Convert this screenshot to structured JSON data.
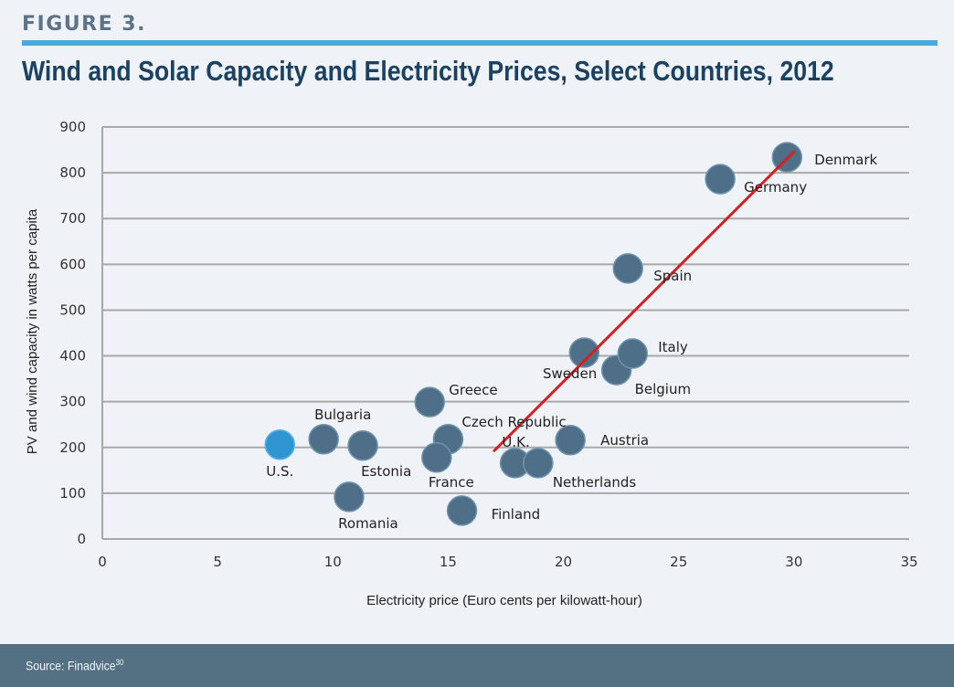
{
  "header": {
    "figure_label": "FIGURE 3.",
    "title": "Wind and Solar Capacity and Electricity Prices, Select Countries, 2012"
  },
  "footer": {
    "source_text": "Source: Finadvice",
    "source_ref": "30"
  },
  "colors": {
    "point": "#4e6f87",
    "highlight_point": "#2f95d1",
    "trendline": "#d42020",
    "gridline": "#a8a8a8",
    "accent_rule": "#4aa8dc",
    "title": "#1b4262",
    "footer_bg": "#537183"
  },
  "chart_data": {
    "type": "scatter",
    "title": "Wind and Solar Capacity and Electricity Prices, Select Countries, 2012",
    "xlabel": "Electricity price (Euro cents per kilowatt-hour)",
    "ylabel": "PV and wind capacity in watts per capita",
    "xlim": [
      0,
      35
    ],
    "ylim": [
      0,
      900
    ],
    "xticks": [
      0,
      5,
      10,
      15,
      20,
      25,
      30,
      35
    ],
    "yticks": [
      0,
      100,
      200,
      300,
      400,
      500,
      600,
      700,
      800,
      900
    ],
    "grid": "horizontal",
    "legend": "none",
    "points": [
      {
        "label": "U.S.",
        "x": 7.7,
        "y": 206,
        "highlight": true,
        "label_pos": "below"
      },
      {
        "label": "Bulgaria",
        "x": 9.6,
        "y": 218,
        "label_pos": "above"
      },
      {
        "label": "Estonia",
        "x": 11.3,
        "y": 204,
        "label_pos": "below-right"
      },
      {
        "label": "Romania",
        "x": 10.7,
        "y": 92,
        "label_pos": "below"
      },
      {
        "label": "Greece",
        "x": 14.2,
        "y": 299,
        "label_pos": "upper-right"
      },
      {
        "label": "Czech Republic",
        "x": 15.0,
        "y": 218,
        "label_pos": "upper-right"
      },
      {
        "label": "France",
        "x": 14.5,
        "y": 178,
        "label_pos": "below"
      },
      {
        "label": "Finland",
        "x": 15.6,
        "y": 62,
        "label_pos": "right"
      },
      {
        "label": "U.K.",
        "x": 17.9,
        "y": 166,
        "label_pos": "above"
      },
      {
        "label": "Netherlands",
        "x": 18.9,
        "y": 166,
        "label_pos": "below-right"
      },
      {
        "label": "Austria",
        "x": 20.3,
        "y": 216,
        "label_pos": "right"
      },
      {
        "label": "Sweden",
        "x": 20.9,
        "y": 407,
        "label_pos": "below-left"
      },
      {
        "label": "Belgium",
        "x": 22.3,
        "y": 369,
        "label_pos": "below-right"
      },
      {
        "label": "Italy",
        "x": 23.0,
        "y": 405,
        "label_pos": "upper-right"
      },
      {
        "label": "Spain",
        "x": 22.8,
        "y": 591,
        "label_pos": "right"
      },
      {
        "label": "Germany",
        "x": 26.8,
        "y": 786,
        "label_pos": "below-right"
      },
      {
        "label": "Denmark",
        "x": 29.7,
        "y": 834,
        "label_pos": "right"
      }
    ],
    "trendline": {
      "x0": 17.0,
      "y0": 193,
      "x1": 30.0,
      "y1": 846
    }
  }
}
